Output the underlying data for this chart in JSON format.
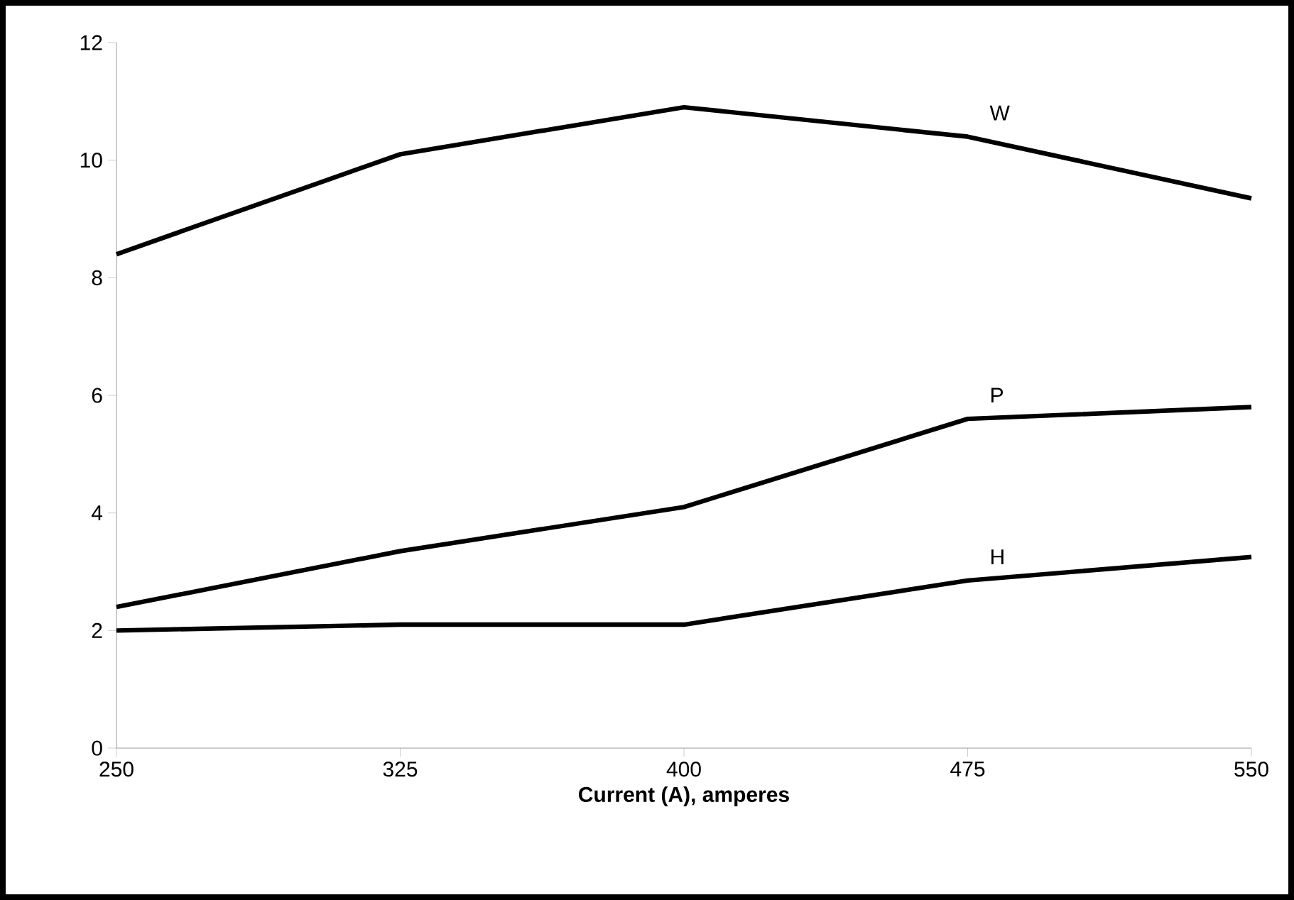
{
  "chart_data": {
    "type": "line",
    "xlabel": "Current (A), amperes",
    "x": [
      250,
      325,
      400,
      475,
      550
    ],
    "series": [
      {
        "name": "W",
        "color": "#000000",
        "values": [
          8.4,
          10.1,
          10.9,
          10.4,
          9.35
        ]
      },
      {
        "name": "P",
        "color": "#000000",
        "values": [
          2.4,
          3.35,
          4.1,
          5.6,
          5.8
        ]
      },
      {
        "name": "H",
        "color": "#000000",
        "values": [
          2.0,
          2.1,
          2.1,
          2.85,
          3.25
        ]
      }
    ],
    "xlim": [
      250,
      550
    ],
    "ylim": [
      0,
      12
    ],
    "xticks": [
      250,
      325,
      400,
      475,
      550
    ],
    "yticks": [
      0,
      2,
      4,
      6,
      8,
      10,
      12
    ],
    "grid": false,
    "legend": false,
    "marker": "none",
    "line_style": "solid"
  }
}
